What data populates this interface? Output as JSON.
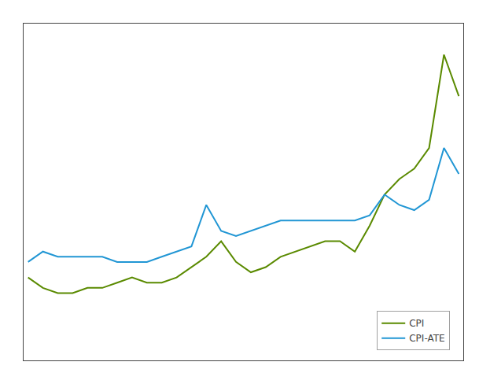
{
  "chart_data": {
    "type": "line",
    "x": [
      0,
      1,
      2,
      3,
      4,
      5,
      6,
      7,
      8,
      9,
      10,
      11,
      12,
      13,
      14,
      15,
      16,
      17,
      18,
      19,
      20,
      21,
      22,
      23,
      24,
      25,
      26,
      27,
      28,
      29
    ],
    "series": [
      {
        "name": "CPI",
        "color": "#5a8a00",
        "values": [
          1.6,
          1.4,
          1.3,
          1.3,
          1.4,
          1.4,
          1.5,
          1.6,
          1.5,
          1.5,
          1.6,
          1.8,
          2.0,
          2.3,
          1.9,
          1.7,
          1.8,
          2.0,
          2.1,
          2.2,
          2.3,
          2.3,
          2.1,
          2.6,
          3.2,
          3.5,
          3.7,
          4.1,
          5.9,
          5.1
        ]
      },
      {
        "name": "CPI-ATE",
        "color": "#2196d4",
        "values": [
          1.9,
          2.1,
          2.0,
          2.0,
          2.0,
          2.0,
          1.9,
          1.9,
          1.9,
          2.0,
          2.1,
          2.2,
          3.0,
          2.5,
          2.4,
          2.5,
          2.6,
          2.7,
          2.7,
          2.7,
          2.7,
          2.7,
          2.7,
          2.8,
          3.2,
          3.0,
          2.9,
          3.1,
          4.1,
          3.6
        ]
      }
    ],
    "xlim": [
      -0.3,
      29.3
    ],
    "ylim": [
      0,
      6.5
    ],
    "tick_labels": false,
    "grid": false,
    "legend": "lower right"
  }
}
